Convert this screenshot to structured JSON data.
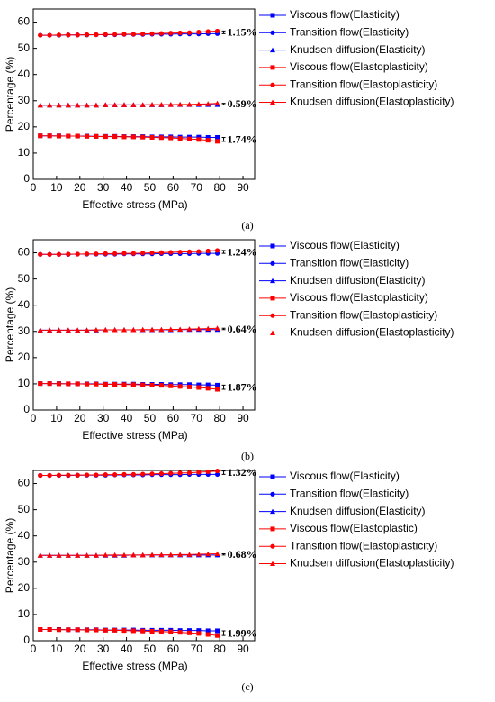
{
  "chart_data": [
    {
      "type": "line",
      "label": "(a)",
      "x_label": "Effective stress (MPa)",
      "y_label": "Percentage (%)",
      "xlim": [
        0,
        95
      ],
      "xticks": [
        0,
        10,
        20,
        30,
        40,
        50,
        60,
        70,
        80,
        90
      ],
      "ylim": [
        0,
        65
      ],
      "yticks": [
        0,
        10,
        20,
        30,
        40,
        50,
        60
      ],
      "x": [
        3,
        7,
        11,
        15,
        19,
        23,
        27,
        31,
        35,
        39,
        43,
        47,
        51,
        55,
        59,
        63,
        67,
        71,
        75,
        79
      ],
      "annotations": [
        "1.15%",
        "0.59%",
        "1.74%"
      ],
      "series": [
        {
          "name": "Viscous flow(Elasticity)",
          "color": "#0000ff",
          "marker": "square",
          "values": [
            16.6,
            16.6,
            16.6,
            16.5,
            16.5,
            16.5,
            16.4,
            16.4,
            16.4,
            16.3,
            16.3,
            16.3,
            16.2,
            16.2,
            16.2,
            16.1,
            16.1,
            16.1,
            16.0,
            16.0
          ]
        },
        {
          "name": "Transition flow(Elasticity)",
          "color": "#0000ff",
          "marker": "circle",
          "values": [
            55.0,
            55.0,
            55.0,
            55.1,
            55.1,
            55.1,
            55.2,
            55.2,
            55.2,
            55.3,
            55.3,
            55.3,
            55.4,
            55.4,
            55.4,
            55.5,
            55.5,
            55.5,
            55.6,
            55.6
          ]
        },
        {
          "name": "Knudsen diffusion(Elasticity)",
          "color": "#0000ff",
          "marker": "triangle",
          "values": [
            28.3,
            28.3,
            28.3,
            28.3,
            28.3,
            28.3,
            28.3,
            28.4,
            28.4,
            28.4,
            28.4,
            28.4,
            28.4,
            28.4,
            28.5,
            28.5,
            28.5,
            28.5,
            28.5,
            28.5
          ]
        },
        {
          "name": "Viscous flow(Elastoplasticity)",
          "color": "#ff0000",
          "marker": "square",
          "values": [
            16.6,
            16.6,
            16.5,
            16.5,
            16.5,
            16.4,
            16.4,
            16.3,
            16.3,
            16.2,
            16.2,
            16.1,
            16.0,
            15.9,
            15.8,
            15.6,
            15.4,
            15.2,
            14.9,
            14.5
          ]
        },
        {
          "name": "Transition flow(Elastoplasticity)",
          "color": "#ff0000",
          "marker": "circle",
          "values": [
            55.0,
            55.0,
            55.1,
            55.1,
            55.1,
            55.2,
            55.2,
            55.3,
            55.3,
            55.4,
            55.4,
            55.5,
            55.6,
            55.7,
            55.8,
            55.9,
            56.0,
            56.2,
            56.4,
            56.6
          ]
        },
        {
          "name": "Knudsen diffusion(Elastoplasticity)",
          "color": "#ff0000",
          "marker": "triangle",
          "values": [
            28.3,
            28.3,
            28.3,
            28.3,
            28.3,
            28.3,
            28.3,
            28.4,
            28.4,
            28.4,
            28.4,
            28.4,
            28.5,
            28.5,
            28.5,
            28.6,
            28.6,
            28.7,
            28.8,
            29.0
          ]
        }
      ]
    },
    {
      "type": "line",
      "label": "(b)",
      "x_label": "Effective stress (MPa)",
      "y_label": "Percentage (%)",
      "xlim": [
        0,
        95
      ],
      "xticks": [
        0,
        10,
        20,
        30,
        40,
        50,
        60,
        70,
        80,
        90
      ],
      "ylim": [
        0,
        65
      ],
      "yticks": [
        0,
        10,
        20,
        30,
        40,
        50,
        60
      ],
      "x": [
        3,
        7,
        11,
        15,
        19,
        23,
        27,
        31,
        35,
        39,
        43,
        47,
        51,
        55,
        59,
        63,
        67,
        71,
        75,
        79
      ],
      "annotations": [
        "1.24%",
        "0.64%",
        "1.87%"
      ],
      "series": [
        {
          "name": "Viscous flow(Elasticity)",
          "color": "#0000ff",
          "marker": "square",
          "values": [
            10.1,
            10.1,
            10.1,
            10.0,
            10.0,
            10.0,
            10.0,
            9.9,
            9.9,
            9.9,
            9.9,
            9.8,
            9.8,
            9.8,
            9.7,
            9.7,
            9.7,
            9.6,
            9.6,
            9.5
          ]
        },
        {
          "name": "Transition flow(Elasticity)",
          "color": "#0000ff",
          "marker": "circle",
          "values": [
            59.4,
            59.4,
            59.4,
            59.4,
            59.5,
            59.5,
            59.5,
            59.5,
            59.5,
            59.6,
            59.6,
            59.6,
            59.6,
            59.7,
            59.7,
            59.7,
            59.7,
            59.8,
            59.8,
            59.8
          ]
        },
        {
          "name": "Knudsen diffusion(Elasticity)",
          "color": "#0000ff",
          "marker": "triangle",
          "values": [
            30.5,
            30.5,
            30.5,
            30.5,
            30.5,
            30.5,
            30.5,
            30.6,
            30.6,
            30.6,
            30.6,
            30.6,
            30.6,
            30.6,
            30.6,
            30.7,
            30.7,
            30.7,
            30.7,
            30.7
          ]
        },
        {
          "name": "Viscous flow(Elastoplasticity)",
          "color": "#ff0000",
          "marker": "square",
          "values": [
            10.1,
            10.1,
            10.0,
            10.0,
            10.0,
            9.9,
            9.9,
            9.8,
            9.8,
            9.7,
            9.7,
            9.6,
            9.5,
            9.4,
            9.2,
            9.0,
            8.8,
            8.6,
            8.3,
            7.9
          ]
        },
        {
          "name": "Transition flow(Elastoplasticity)",
          "color": "#ff0000",
          "marker": "circle",
          "values": [
            59.4,
            59.4,
            59.4,
            59.5,
            59.5,
            59.6,
            59.6,
            59.7,
            59.7,
            59.8,
            59.8,
            59.9,
            60.0,
            60.1,
            60.2,
            60.3,
            60.4,
            60.5,
            60.7,
            60.9
          ]
        },
        {
          "name": "Knudsen diffusion(Elastoplasticity)",
          "color": "#ff0000",
          "marker": "triangle",
          "values": [
            30.5,
            30.5,
            30.5,
            30.5,
            30.5,
            30.5,
            30.6,
            30.6,
            30.6,
            30.6,
            30.6,
            30.7,
            30.7,
            30.7,
            30.8,
            30.8,
            30.9,
            31.0,
            31.1,
            31.2
          ]
        }
      ]
    },
    {
      "type": "line",
      "label": "(c)",
      "x_label": "Effective stress (MPa)",
      "y_label": "Percentage (%)",
      "xlim": [
        0,
        95
      ],
      "xticks": [
        0,
        10,
        20,
        30,
        40,
        50,
        60,
        70,
        80,
        90
      ],
      "ylim": [
        0,
        65
      ],
      "yticks": [
        0,
        10,
        20,
        30,
        40,
        50,
        60
      ],
      "x": [
        3,
        7,
        11,
        15,
        19,
        23,
        27,
        31,
        35,
        39,
        43,
        47,
        51,
        55,
        59,
        63,
        67,
        71,
        75,
        79
      ],
      "annotations": [
        "1.32%",
        "0.68%",
        "1.99%"
      ],
      "series": [
        {
          "name": "Viscous flow(Elasticity)",
          "color": "#0000ff",
          "marker": "square",
          "values": [
            4.3,
            4.3,
            4.3,
            4.2,
            4.2,
            4.2,
            4.2,
            4.1,
            4.1,
            4.1,
            4.1,
            4.0,
            4.0,
            4.0,
            4.0,
            3.9,
            3.9,
            3.9,
            3.8,
            3.8
          ]
        },
        {
          "name": "Transition flow(Elasticity)",
          "color": "#0000ff",
          "marker": "circle",
          "values": [
            63.1,
            63.1,
            63.1,
            63.1,
            63.2,
            63.2,
            63.2,
            63.2,
            63.3,
            63.3,
            63.3,
            63.3,
            63.4,
            63.4,
            63.4,
            63.4,
            63.5,
            63.5,
            63.5,
            63.5
          ]
        },
        {
          "name": "Knudsen diffusion(Elasticity)",
          "color": "#0000ff",
          "marker": "triangle",
          "values": [
            32.6,
            32.6,
            32.6,
            32.6,
            32.6,
            32.6,
            32.6,
            32.6,
            32.6,
            32.6,
            32.7,
            32.7,
            32.7,
            32.7,
            32.7,
            32.7,
            32.7,
            32.7,
            32.7,
            32.7
          ]
        },
        {
          "name": "Viscous flow(Elastoplastic)",
          "color": "#ff0000",
          "marker": "square",
          "values": [
            4.3,
            4.3,
            4.2,
            4.2,
            4.2,
            4.1,
            4.1,
            4.0,
            4.0,
            3.9,
            3.8,
            3.7,
            3.6,
            3.5,
            3.4,
            3.2,
            3.0,
            2.8,
            2.4,
            2.0
          ]
        },
        {
          "name": "Transition flow(Elastoplasticity)",
          "color": "#ff0000",
          "marker": "circle",
          "values": [
            63.1,
            63.1,
            63.2,
            63.2,
            63.2,
            63.3,
            63.3,
            63.4,
            63.4,
            63.5,
            63.5,
            63.6,
            63.7,
            63.8,
            63.9,
            64.0,
            64.1,
            64.3,
            64.5,
            64.8
          ]
        },
        {
          "name": "Knudsen diffusion(Elastoplasticity)",
          "color": "#ff0000",
          "marker": "triangle",
          "values": [
            32.6,
            32.6,
            32.6,
            32.6,
            32.6,
            32.6,
            32.6,
            32.7,
            32.7,
            32.7,
            32.7,
            32.7,
            32.8,
            32.8,
            32.8,
            32.9,
            32.9,
            33.0,
            33.1,
            33.2
          ]
        }
      ]
    }
  ]
}
